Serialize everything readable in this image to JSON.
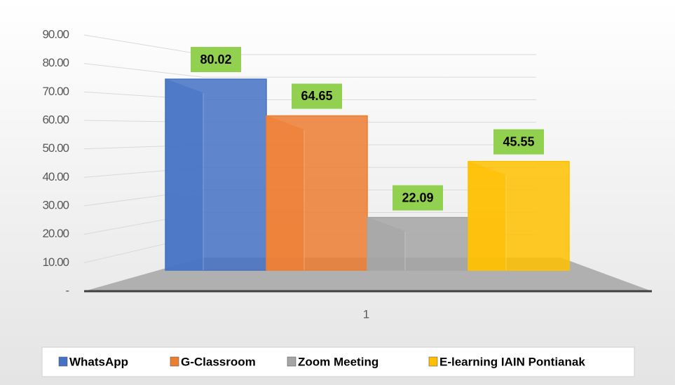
{
  "chart_data": {
    "type": "bar",
    "categories": [
      "1"
    ],
    "series": [
      {
        "name": "WhatsApp",
        "color": "#4472c4",
        "values": [
          80.02
        ]
      },
      {
        "name": "G-Classroom",
        "color": "#ed7d31",
        "values": [
          64.65
        ]
      },
      {
        "name": "Zoom Meeting",
        "color": "#a5a5a5",
        "values": [
          22.09
        ]
      },
      {
        "name": "E-learning IAIN Pontianak",
        "color": "#ffc000",
        "values": [
          45.55
        ]
      }
    ],
    "ylim": [
      0,
      90
    ],
    "yticks": [
      {
        "value": 0,
        "label": "-"
      },
      {
        "value": 10,
        "label": "10.00"
      },
      {
        "value": 20,
        "label": "20.00"
      },
      {
        "value": 30,
        "label": "30.00"
      },
      {
        "value": 40,
        "label": "40.00"
      },
      {
        "value": 50,
        "label": "50.00"
      },
      {
        "value": 60,
        "label": "60.00"
      },
      {
        "value": 70,
        "label": "70.00"
      },
      {
        "value": 80,
        "label": "80.00"
      },
      {
        "value": 90,
        "label": "90.00"
      }
    ],
    "grid": true,
    "legend": "bottom"
  }
}
